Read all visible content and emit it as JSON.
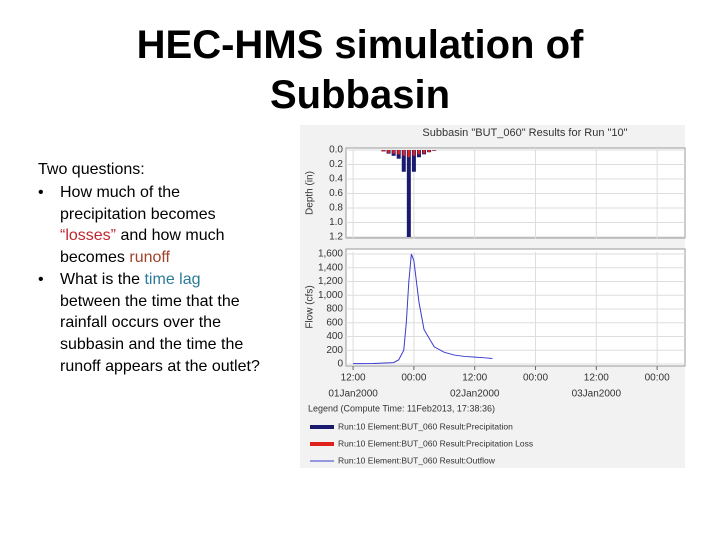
{
  "slide": {
    "title_lines": [
      "HEC-HMS simulation of",
      "Subbasin"
    ],
    "intro": "Two questions:",
    "bullets": [
      [
        {
          "text": "How much of the precipitation becomes ",
          "color": "#000000"
        },
        {
          "text": "“losses”",
          "color": "#c0272d"
        },
        {
          "text": " and how much becomes ",
          "color": "#000000"
        },
        {
          "text": "runoff",
          "color": "#a0432a"
        }
      ],
      [
        {
          "text": "What is the ",
          "color": "#000000"
        },
        {
          "text": "time lag",
          "color": "#2a7a9a"
        },
        {
          "text": " between the time that the rainfall occurs over the subbasin and the time the runoff appears at the outlet?",
          "color": "#000000"
        }
      ]
    ]
  },
  "figure": {
    "title": "Subbasin \"BUT_060\" Results for Run \"10\"",
    "legend_title": "Legend (Compute Time: 11Feb2013, 17:38:36)"
  },
  "chart_data": [
    {
      "type": "bar",
      "y_label": "Depth (in)",
      "x": [
        18,
        19,
        20,
        21,
        22,
        23,
        24,
        25,
        26,
        27,
        28
      ],
      "series": [
        {
          "name": "Run:10 Element:BUT_060 Result:Precipitation",
          "color": "#1a1a6e",
          "values": [
            0.02,
            0.05,
            0.08,
            0.12,
            0.3,
            1.2,
            0.3,
            0.1,
            0.06,
            0.03,
            0.01
          ]
        },
        {
          "name": "Run:10 Element:BUT_060 Result:Precipitation Loss",
          "color": "#e0201b",
          "values": [
            0.02,
            0.04,
            0.05,
            0.06,
            0.08,
            0.1,
            0.08,
            0.06,
            0.05,
            0.03,
            0.01
          ]
        }
      ],
      "xlim": [
        10.6,
        77.5
      ],
      "xticks": [
        12,
        24,
        36,
        48,
        60,
        72
      ],
      "ylim": [
        1.2,
        0
      ],
      "yticks": [
        {
          "value": 0,
          "label": "0.0"
        },
        {
          "value": 0.2,
          "label": "0.2"
        },
        {
          "value": 0.4,
          "label": "0.4"
        },
        {
          "value": 0.6,
          "label": "0.6"
        },
        {
          "value": 0.8,
          "label": "0.8"
        },
        {
          "value": 1,
          "label": "1.0"
        },
        {
          "value": 1.2,
          "label": "1.2"
        }
      ],
      "grid": true
    },
    {
      "type": "line",
      "y_label": "Flow (cfs)",
      "x": [
        12,
        16,
        20,
        21,
        22,
        22.5,
        23,
        23.5,
        24,
        25,
        26,
        28,
        30,
        32,
        34,
        36,
        38,
        39.5
      ],
      "series": [
        {
          "name": "Run:10 Element:BUT_060 Result:Outflow",
          "color": "#3a3ad0",
          "values": [
            5,
            8,
            20,
            60,
            200,
            600,
            1200,
            1600,
            1500,
            900,
            500,
            250,
            170,
            130,
            110,
            100,
            90,
            80
          ]
        }
      ],
      "xlim": [
        10.6,
        77.5
      ],
      "xticks": [
        {
          "value": 12,
          "label": "12:00"
        },
        {
          "value": 24,
          "label": "00:00"
        },
        {
          "value": 36,
          "label": "12:00"
        },
        {
          "value": 48,
          "label": "00:00"
        },
        {
          "value": 60,
          "label": "12:00"
        },
        {
          "value": 72,
          "label": "00:00"
        }
      ],
      "date_labels": [
        {
          "value": 12,
          "label": "01Jan2000"
        },
        {
          "value": 36,
          "label": "02Jan2000"
        },
        {
          "value": 60,
          "label": "03Jan2000"
        }
      ],
      "ylim": [
        0,
        1600
      ],
      "yticks": [
        0,
        200,
        400,
        600,
        800,
        {
          "value": 1000,
          "label": "1,000"
        },
        {
          "value": 1200,
          "label": "1,200"
        },
        {
          "value": 1400,
          "label": "1,400"
        },
        {
          "value": 1600,
          "label": "1,600"
        }
      ],
      "grid": true
    }
  ]
}
